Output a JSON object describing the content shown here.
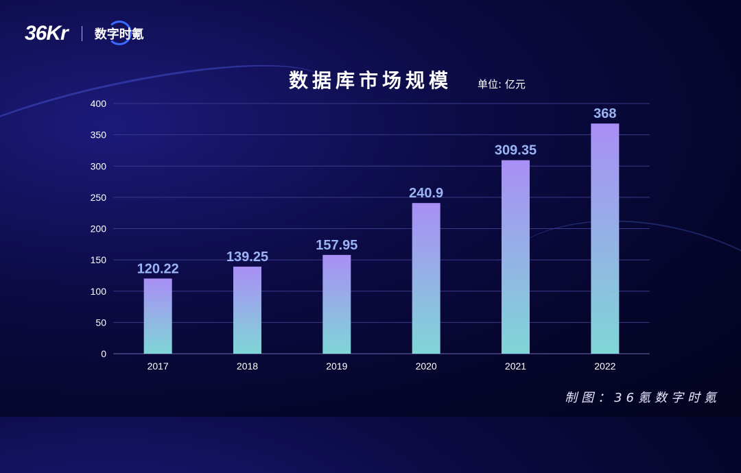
{
  "brand": {
    "logo_text": "36Kr",
    "sub_brand": "数字时氪"
  },
  "title": "数据库市场规模",
  "unit": "单位: 亿元",
  "footer": "制图：36氪数字时氪",
  "chart_data": {
    "type": "bar",
    "categories": [
      "2017",
      "2018",
      "2019",
      "2020",
      "2021",
      "2022"
    ],
    "values": [
      120.22,
      139.25,
      157.95,
      240.9,
      309.35,
      368
    ],
    "value_labels": [
      "120.22",
      "139.25",
      "157.95",
      "240.9",
      "309.35",
      "368"
    ],
    "title": "数据库市场规模",
    "ylim": [
      0,
      400
    ],
    "yticks": [
      0,
      50,
      100,
      150,
      200,
      250,
      300,
      350,
      400
    ],
    "grid": true,
    "colors": {
      "bar_top": "#a98ef5",
      "bar_bottom": "#7fd6d6",
      "label": "#9ab4f5",
      "axis_text": "#ffffff",
      "grid": "#3a3a8a"
    }
  }
}
